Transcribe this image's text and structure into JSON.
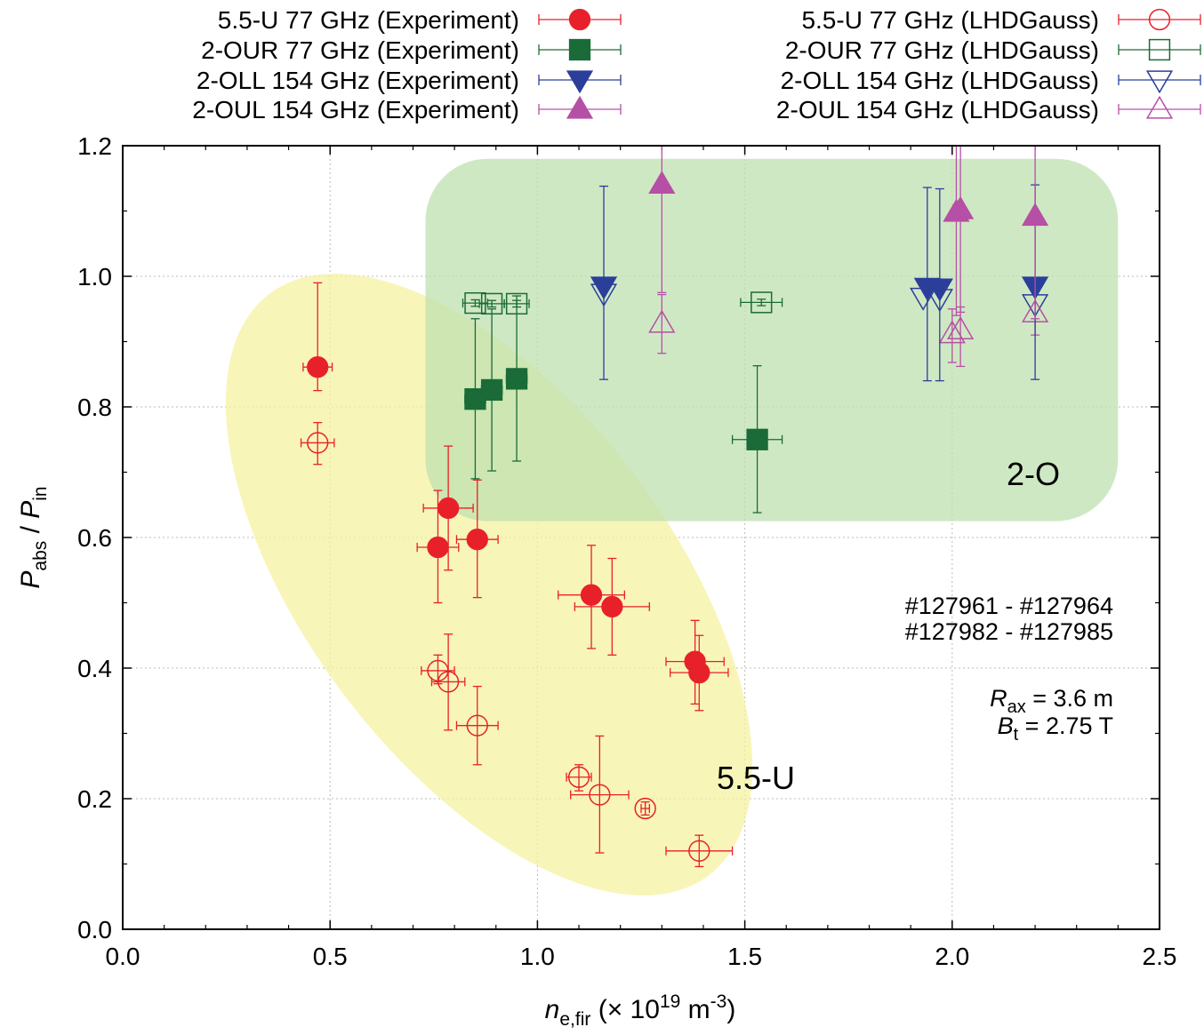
{
  "chart_data": {
    "type": "scatter",
    "x_axis": {
      "label_base": "n",
      "label_sub": "e,fir",
      "label_rest": " (× 10",
      "label_sup": "19",
      "label_unit": " m",
      "label_unit_sup": "-3",
      "label_close": ")",
      "range": [
        0,
        2.5
      ],
      "ticks": [
        "0.0",
        "0.5",
        "1.0",
        "1.5",
        "2.0",
        "2.5"
      ],
      "tick_values": [
        0,
        0.5,
        1.0,
        1.5,
        2.0,
        2.5
      ]
    },
    "y_axis": {
      "label_p1": "P",
      "label_sub1": "abs",
      "label_sep": " / ",
      "label_p2": "P",
      "label_sub2": "in",
      "range": [
        0,
        1.2
      ],
      "ticks": [
        "0.0",
        "0.2",
        "0.4",
        "0.6",
        "0.8",
        "1.0",
        "1.2"
      ],
      "tick_values": [
        0,
        0.2,
        0.4,
        0.6,
        0.8,
        1.0,
        1.2
      ]
    },
    "grid": true,
    "colors": {
      "red": "#e8202a",
      "green": "#1a6b37",
      "blue": "#2b3e9a",
      "magenta": "#b64fa6",
      "green_region": "#bfe0b0",
      "yellow_region": "#f5f2a0"
    },
    "regions": [
      {
        "label": "2-O",
        "color": "#bfe0b0",
        "x_range": [
          0.73,
          2.4
        ],
        "y_range": [
          0.625,
          1.18
        ]
      },
      {
        "label": "5.5-U",
        "color": "#f5f2a0"
      }
    ],
    "annotations": {
      "shots_line1": "#127961 - #127964",
      "shots_line2": "#127982 - #127985",
      "rax_sym": "R",
      "rax_sub": "ax",
      "rax_val": " = 3.6 m",
      "bt_sym": "B",
      "bt_sub": "t",
      "bt_val": " = 2.75 T"
    },
    "series": [
      {
        "name": "5.5-U 77 GHz (Experiment)",
        "color": "#e8202a",
        "marker": "circle",
        "filled": true,
        "points": [
          {
            "x": 0.47,
            "y": 0.861,
            "xerr": 0.035,
            "ylo": 0.825,
            "yhi": 0.99
          },
          {
            "x": 0.76,
            "y": 0.585,
            "xerr": 0.05,
            "ylo": 0.5,
            "yhi": 0.672
          },
          {
            "x": 0.785,
            "y": 0.645,
            "xerr": 0.06,
            "ylo": 0.55,
            "yhi": 0.74
          },
          {
            "x": 0.855,
            "y": 0.597,
            "xerr": 0.05,
            "ylo": 0.508,
            "yhi": 0.688
          },
          {
            "x": 1.13,
            "y": 0.512,
            "xerr": 0.08,
            "ylo": 0.43,
            "yhi": 0.588
          },
          {
            "x": 1.18,
            "y": 0.494,
            "xerr": 0.09,
            "ylo": 0.42,
            "yhi": 0.568
          },
          {
            "x": 1.38,
            "y": 0.41,
            "xerr": 0.07,
            "ylo": 0.345,
            "yhi": 0.473
          },
          {
            "x": 1.39,
            "y": 0.393,
            "xerr": 0.07,
            "ylo": 0.335,
            "yhi": 0.45
          }
        ]
      },
      {
        "name": "2-OUR 77 GHz (Experiment)",
        "color": "#1a6b37",
        "marker": "square",
        "filled": true,
        "points": [
          {
            "x": 0.85,
            "y": 0.812,
            "xerr": 0.025,
            "ylo": 0.69,
            "yhi": 0.935
          },
          {
            "x": 0.89,
            "y": 0.826,
            "xerr": 0.025,
            "ylo": 0.702,
            "yhi": 0.95
          },
          {
            "x": 0.95,
            "y": 0.843,
            "xerr": 0.025,
            "ylo": 0.717,
            "yhi": 0.97
          },
          {
            "x": 1.53,
            "y": 0.75,
            "xerr": 0.06,
            "ylo": 0.638,
            "yhi": 0.863
          }
        ]
      },
      {
        "name": "2-OLL 154 GHz (Experiment)",
        "color": "#2b3e9a",
        "marker": "triangle-down",
        "filled": true,
        "points": [
          {
            "x": 1.16,
            "y": 0.985,
            "xerr": 0,
            "ylo": 0.842,
            "yhi": 1.138
          },
          {
            "x": 1.94,
            "y": 0.983,
            "xerr": 0,
            "ylo": 0.84,
            "yhi": 1.136
          },
          {
            "x": 1.97,
            "y": 0.982,
            "xerr": 0,
            "ylo": 0.84,
            "yhi": 1.134
          },
          {
            "x": 2.2,
            "y": 0.985,
            "xerr": 0,
            "ylo": 0.842,
            "yhi": 1.14
          }
        ]
      },
      {
        "name": "2-OUL 154 GHz (Experiment)",
        "color": "#b64fa6",
        "marker": "triangle-up",
        "filled": true,
        "points": [
          {
            "x": 1.3,
            "y": 1.141,
            "xerr": 0,
            "ylo": 0.975,
            "yhi": 1.2
          },
          {
            "x": 2.01,
            "y": 1.098,
            "xerr": 0,
            "ylo": 0.94,
            "yhi": 1.2
          },
          {
            "x": 2.02,
            "y": 1.102,
            "xerr": 0,
            "ylo": 0.945,
            "yhi": 1.2
          },
          {
            "x": 2.2,
            "y": 1.092,
            "xerr": 0,
            "ylo": 0.935,
            "yhi": 1.2
          }
        ]
      },
      {
        "name": "5.5-U 77 GHz (LHDGauss)",
        "color": "#e8202a",
        "marker": "circle",
        "filled": false,
        "points": [
          {
            "x": 0.47,
            "y": 0.745,
            "xerr": 0.04,
            "ylo": 0.712,
            "yhi": 0.776
          },
          {
            "x": 0.76,
            "y": 0.396,
            "xerr": 0.04,
            "ylo": 0.376,
            "yhi": 0.42
          },
          {
            "x": 0.785,
            "y": 0.379,
            "xerr": 0.04,
            "ylo": 0.305,
            "yhi": 0.452
          },
          {
            "x": 0.855,
            "y": 0.312,
            "xerr": 0.05,
            "ylo": 0.252,
            "yhi": 0.372
          },
          {
            "x": 1.1,
            "y": 0.233,
            "xerr": 0.03,
            "ylo": 0.212,
            "yhi": 0.252
          },
          {
            "x": 1.15,
            "y": 0.206,
            "xerr": 0.07,
            "ylo": 0.117,
            "yhi": 0.296
          },
          {
            "x": 1.26,
            "y": 0.185,
            "xerr": 0.01,
            "ylo": 0.175,
            "yhi": 0.195
          },
          {
            "x": 1.39,
            "y": 0.12,
            "xerr": 0.08,
            "ylo": 0.096,
            "yhi": 0.144
          }
        ]
      },
      {
        "name": "2-OUR 77 GHz (LHDGauss)",
        "color": "#1a6b37",
        "marker": "square",
        "filled": false,
        "points": [
          {
            "x": 0.85,
            "y": 0.959,
            "xerr": 0.03,
            "ylo": 0.954,
            "yhi": 0.964
          },
          {
            "x": 0.89,
            "y": 0.958,
            "xerr": 0.03,
            "ylo": 0.953,
            "yhi": 0.963
          },
          {
            "x": 0.95,
            "y": 0.958,
            "xerr": 0.03,
            "ylo": 0.953,
            "yhi": 0.963
          },
          {
            "x": 1.54,
            "y": 0.96,
            "xerr": 0.05,
            "ylo": 0.955,
            "yhi": 0.965
          }
        ]
      },
      {
        "name": "2-OLL 154 GHz (LHDGauss)",
        "color": "#2b3e9a",
        "marker": "triangle-down",
        "filled": false,
        "points": [
          {
            "x": 1.16,
            "y": 0.974,
            "xerr": 0,
            "ylo": 0.974,
            "yhi": 0.974
          },
          {
            "x": 1.93,
            "y": 0.968,
            "xerr": 0,
            "ylo": 0.968,
            "yhi": 0.968
          },
          {
            "x": 1.97,
            "y": 0.966,
            "xerr": 0,
            "ylo": 0.966,
            "yhi": 0.966
          },
          {
            "x": 2.2,
            "y": 0.958,
            "xerr": 0,
            "ylo": 0.958,
            "yhi": 0.958
          }
        ]
      },
      {
        "name": "2-OUL 154 GHz (LHDGauss)",
        "color": "#b64fa6",
        "marker": "triangle-up",
        "filled": false,
        "points": [
          {
            "x": 1.3,
            "y": 0.928,
            "xerr": 0,
            "ylo": 0.882,
            "yhi": 0.972
          },
          {
            "x": 2.0,
            "y": 0.912,
            "xerr": 0,
            "ylo": 0.868,
            "yhi": 0.95
          },
          {
            "x": 2.02,
            "y": 0.918,
            "xerr": 0,
            "ylo": 0.862,
            "yhi": 0.953
          },
          {
            "x": 2.2,
            "y": 0.944,
            "xerr": 0,
            "ylo": 0.91,
            "yhi": 0.98
          }
        ]
      }
    ]
  }
}
